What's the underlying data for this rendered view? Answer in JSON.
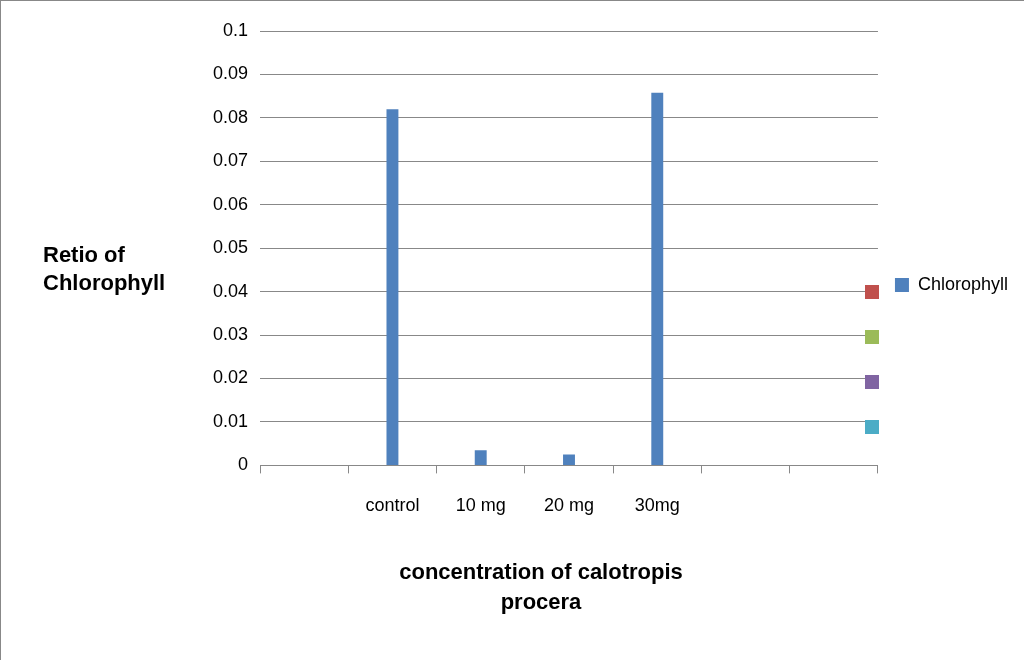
{
  "chart_data": {
    "type": "bar",
    "xlabel": "concentration of calotropis procera",
    "ylabel": "Retio of Chlorophyll",
    "categories": [
      null,
      "control",
      "10 mg",
      "20 mg",
      "30mg",
      null,
      null
    ],
    "series": [
      {
        "name": "Chlorophyll",
        "color": "#4f81bd",
        "values": [
          null,
          0.082,
          0.0035,
          0.0025,
          0.0858,
          null,
          null
        ]
      }
    ],
    "ylim": [
      0,
      0.1
    ],
    "yticks": [
      0,
      0.01,
      0.02,
      0.03,
      0.04,
      0.05,
      0.06,
      0.07,
      0.08,
      0.09,
      0.1
    ],
    "grid": "y",
    "legend": "right"
  }
}
